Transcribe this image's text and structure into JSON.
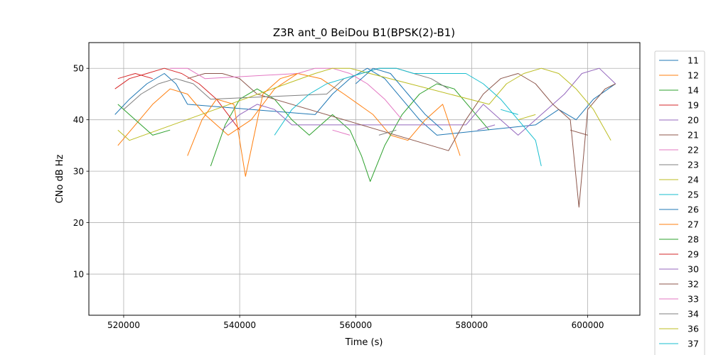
{
  "chart_data": {
    "type": "line",
    "title": "Z3R ant_0 BeiDou B1(BPSK(2)-B1)",
    "xlabel": "Time (s)",
    "ylabel": "CNo dB Hz",
    "xlim": [
      514000,
      609000
    ],
    "ylim": [
      2,
      55
    ],
    "xticks": [
      520000,
      540000,
      560000,
      580000,
      600000
    ],
    "yticks": [
      10,
      20,
      30,
      40,
      50
    ],
    "grid": true,
    "legend_position": "outside-right",
    "series": [
      {
        "name": "11",
        "color": "#1f77b4",
        "x": [
          518500,
          521000,
          524000,
          527000,
          529000,
          531000,
          553000,
          556000,
          559000,
          562000,
          565000,
          568000,
          571000,
          574000,
          591000,
          595000,
          598000,
          601000,
          604800
        ],
        "y": [
          41,
          44,
          47,
          49,
          47,
          43,
          41,
          45,
          48,
          50,
          48,
          44,
          40,
          37,
          39,
          42,
          40,
          44,
          47
        ]
      },
      {
        "name": "12",
        "color": "#ff7f0e",
        "x": [
          519000,
          522000,
          525000,
          528000,
          531000,
          534000,
          538000,
          542000,
          546000,
          550000,
          554000,
          558000,
          563000,
          566000,
          569000,
          572000,
          575000,
          578000
        ],
        "y": [
          35,
          39,
          43,
          46,
          45,
          41,
          37,
          40,
          46,
          49,
          48,
          45,
          41,
          37,
          36,
          40,
          43,
          33
        ]
      },
      {
        "name": "14",
        "color": "#2ca02c",
        "x": [
          535000,
          537500,
          540000,
          543000,
          546000,
          549000,
          552000,
          556000,
          559000,
          561000,
          562500,
          565000,
          568000,
          571000,
          574000,
          577000,
          580000,
          583000
        ],
        "y": [
          31,
          39,
          44,
          46,
          44,
          40,
          37,
          41,
          38,
          33,
          28,
          35,
          41,
          45,
          47,
          46,
          42,
          38
        ]
      },
      {
        "name": "19",
        "color": "#d62728",
        "x": [
          518500,
          521000,
          524000,
          527000,
          530000,
          533000,
          536000,
          538000,
          540000
        ],
        "y": [
          46,
          48,
          49,
          50,
          49,
          47,
          44,
          41,
          38
        ]
      },
      {
        "name": "20",
        "color": "#9467bd",
        "x": [
          537000,
          540000,
          543000,
          546000,
          549000,
          579000,
          582000,
          585000,
          588000,
          592000,
          596000,
          599000,
          602000,
          604800
        ],
        "y": [
          38,
          41,
          43,
          42,
          39,
          39,
          43,
          40,
          37,
          41,
          45,
          49,
          50,
          47
        ]
      },
      {
        "name": "21",
        "color": "#8c564b",
        "x": [
          531000,
          534000,
          537000,
          540000,
          543000,
          576000,
          579000,
          582000,
          585000,
          588000,
          591000,
          594000,
          597000,
          598500,
          600000,
          603000,
          604800
        ],
        "y": [
          48,
          49,
          49,
          48,
          45,
          34,
          40,
          45,
          48,
          49,
          47,
          43,
          40,
          23,
          42,
          46,
          47
        ]
      },
      {
        "name": "22",
        "color": "#e377c2",
        "x": [
          528000,
          531000,
          534000,
          550000,
          553000,
          556000,
          559000,
          562000,
          565000,
          568000
        ],
        "y": [
          50,
          50,
          48,
          49,
          50,
          50,
          49,
          47,
          44,
          40
        ]
      },
      {
        "name": "23",
        "color": "#7f7f7f",
        "x": [
          520000,
          523000,
          526000,
          529000,
          532000,
          535000,
          555000,
          558000,
          561000,
          564000,
          567000,
          570000,
          573000,
          576000
        ],
        "y": [
          42,
          45,
          47,
          48,
          47,
          44,
          45,
          48,
          49,
          50,
          50,
          49,
          48,
          46
        ]
      },
      {
        "name": "24",
        "color": "#bcbd22",
        "x": [
          519000,
          521000,
          553000,
          556000,
          559000,
          583000,
          586000,
          589000,
          592000,
          595000,
          598000,
          601000,
          604000
        ],
        "y": [
          38,
          36,
          49,
          50,
          50,
          43,
          47,
          49,
          50,
          49,
          46,
          42,
          36
        ]
      },
      {
        "name": "25",
        "color": "#17becf",
        "x": [
          546000,
          549000,
          552000,
          555000,
          558000,
          561000,
          564000,
          567000,
          570000,
          573000,
          576000,
          579000,
          582000,
          585000,
          588000,
          591000,
          592000
        ],
        "y": [
          37,
          42,
          45,
          47,
          48,
          49,
          50,
          50,
          49,
          49,
          49,
          49,
          47,
          44,
          40,
          36,
          31
        ]
      },
      {
        "name": "26",
        "color": "#1f77b4",
        "x": [
          560000,
          563000,
          566000,
          569000,
          572000,
          575000
        ],
        "y": [
          47,
          50,
          49,
          45,
          41,
          38
        ]
      },
      {
        "name": "27",
        "color": "#ff7f0e",
        "x": [
          531000,
          533500,
          536000,
          539000,
          541000,
          544000,
          547000,
          550000
        ],
        "y": [
          33,
          40,
          44,
          43,
          29,
          45,
          48,
          49
        ]
      },
      {
        "name": "28",
        "color": "#2ca02c",
        "x": [
          519000,
          522000,
          525000,
          528000
        ],
        "y": [
          43,
          40,
          37,
          38
        ]
      },
      {
        "name": "29",
        "color": "#d62728",
        "x": [
          519000,
          522000,
          525000
        ],
        "y": [
          48,
          49,
          48
        ]
      },
      {
        "name": "30",
        "color": "#9467bd",
        "x": [
          581000,
          584000
        ],
        "y": [
          38,
          39
        ]
      },
      {
        "name": "32",
        "color": "#8c564b",
        "x": [
          597000,
          600000
        ],
        "y": [
          38,
          37
        ]
      },
      {
        "name": "33",
        "color": "#e377c2",
        "x": [
          556000,
          559000
        ],
        "y": [
          38,
          37
        ]
      },
      {
        "name": "34",
        "color": "#7f7f7f",
        "x": [
          564000,
          567000
        ],
        "y": [
          37,
          38
        ]
      },
      {
        "name": "36",
        "color": "#bcbd22",
        "x": [
          588000,
          591000
        ],
        "y": [
          40,
          41
        ]
      },
      {
        "name": "37",
        "color": "#17becf",
        "x": [
          585000,
          588000
        ],
        "y": [
          42,
          41
        ]
      }
    ]
  }
}
